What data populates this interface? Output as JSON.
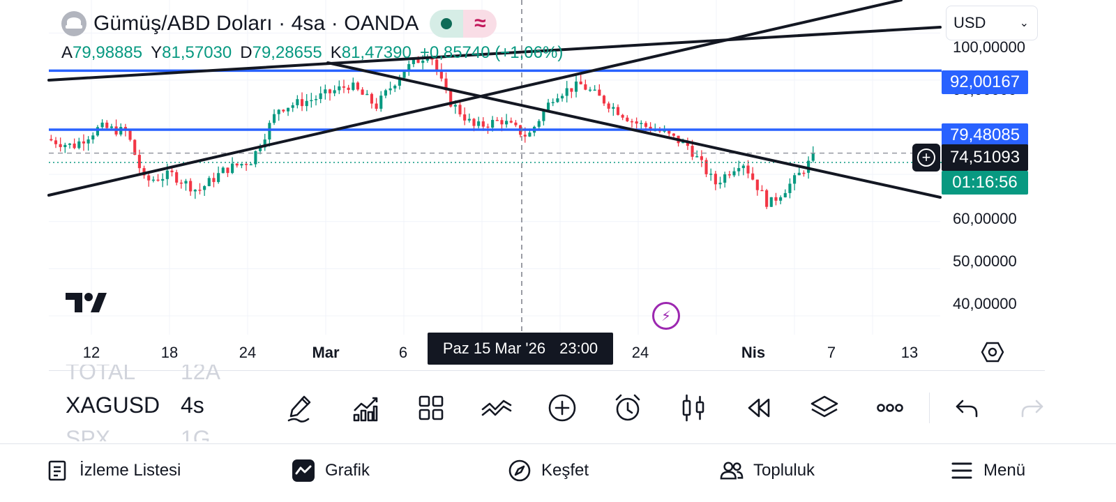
{
  "header": {
    "symbol_title": "Gümüş/ABD Doları · 4sa · OANDA",
    "market_status": "market-open-dot",
    "delay_icon": "≈"
  },
  "ohlc": {
    "open_label": "A",
    "open": "79,98885",
    "high_label": "Y",
    "high": "81,57030",
    "low_label": "D",
    "low": "79,28655",
    "close_label": "K",
    "close": "81,47390",
    "change": "+0,85740 (+1,06%)"
  },
  "currency": "USD",
  "price_axis": {
    "labels": [
      {
        "text": "100,00000",
        "value": 100
      },
      {
        "text": "90,00000",
        "value": 90
      },
      {
        "text": "60,00000",
        "value": 60
      },
      {
        "text": "50,00000",
        "value": 50
      },
      {
        "text": "40,00000",
        "value": 40
      }
    ],
    "tags": {
      "line1": "92,00167",
      "line2": "79,48085",
      "crosshair": "74,51093",
      "countdown": "01:16:56"
    }
  },
  "time_axis": {
    "labels": [
      {
        "text": "12",
        "bold": false
      },
      {
        "text": "18",
        "bold": false
      },
      {
        "text": "24",
        "bold": false
      },
      {
        "text": "Mar",
        "bold": true
      },
      {
        "text": "6",
        "bold": false
      },
      {
        "text": "24",
        "bold": false
      },
      {
        "text": "Nis",
        "bold": true
      },
      {
        "text": "7",
        "bold": false
      },
      {
        "text": "13",
        "bold": false
      }
    ],
    "crosshair_date": "Paz 15 Mar '26",
    "crosshair_time": "23:00"
  },
  "watchlist_strip": [
    {
      "symbol": "TOTAL",
      "interval": "12A",
      "state": "faded"
    },
    {
      "symbol": "XAGUSD",
      "interval": "4s",
      "state": "active"
    },
    {
      "symbol": "SPX",
      "interval": "1G",
      "state": "faded"
    }
  ],
  "toolbar": [
    {
      "name": "drawing-tool-button",
      "icon": "pen-icon"
    },
    {
      "name": "indicators-button",
      "icon": "chart-bars-icon"
    },
    {
      "name": "layouts-button",
      "icon": "grid-icon"
    },
    {
      "name": "compare-button",
      "icon": "waves-icon"
    },
    {
      "name": "add-button",
      "icon": "plus-circle-icon"
    },
    {
      "name": "alert-button",
      "icon": "alarm-clock-icon"
    },
    {
      "name": "chart-type-button",
      "icon": "candles-icon"
    },
    {
      "name": "replay-button",
      "icon": "rewind-icon"
    },
    {
      "name": "objects-tree-button",
      "icon": "layers-icon"
    },
    {
      "name": "more-button",
      "icon": "ellipsis-icon"
    },
    {
      "name": "undo-button",
      "icon": "undo-icon"
    },
    {
      "name": "redo-button",
      "icon": "redo-icon"
    }
  ],
  "bottom_nav": [
    {
      "label": "İzleme Listesi",
      "icon": "watchlist-icon"
    },
    {
      "label": "Grafik",
      "icon": "chart-icon"
    },
    {
      "label": "Keşfet",
      "icon": "compass-icon"
    },
    {
      "label": "Topluluk",
      "icon": "community-icon"
    },
    {
      "label": "Menü",
      "icon": "menu-icon"
    }
  ],
  "colors": {
    "up": "#089981",
    "down": "#f23645",
    "horizontal_line": "#2962ff",
    "trendline": "#131722",
    "purple": "#9c27b0"
  },
  "chart_data": {
    "type": "candlestick",
    "symbol": "XAGUSD",
    "interval": "4s",
    "ylim": [
      36,
      107
    ],
    "horizontal_levels": [
      92.00167,
      79.48085
    ],
    "crosshair_price": 74.51093,
    "series_hint": [
      {
        "x": 0.0,
        "y": 77.5
      },
      {
        "x": 0.03,
        "y": 76.0
      },
      {
        "x": 0.06,
        "y": 80.0
      },
      {
        "x": 0.09,
        "y": 79.0
      },
      {
        "x": 0.11,
        "y": 68.5
      },
      {
        "x": 0.14,
        "y": 70.0
      },
      {
        "x": 0.17,
        "y": 66.5
      },
      {
        "x": 0.2,
        "y": 71.0
      },
      {
        "x": 0.23,
        "y": 73.0
      },
      {
        "x": 0.26,
        "y": 84.0
      },
      {
        "x": 0.3,
        "y": 86.0
      },
      {
        "x": 0.34,
        "y": 89.0
      },
      {
        "x": 0.37,
        "y": 84.5
      },
      {
        "x": 0.4,
        "y": 92.0
      },
      {
        "x": 0.43,
        "y": 96.0
      },
      {
        "x": 0.45,
        "y": 86.0
      },
      {
        "x": 0.48,
        "y": 80.0
      },
      {
        "x": 0.51,
        "y": 81.5
      },
      {
        "x": 0.54,
        "y": 78.0
      },
      {
        "x": 0.57,
        "y": 87.0
      },
      {
        "x": 0.6,
        "y": 89.0
      },
      {
        "x": 0.63,
        "y": 85.0
      },
      {
        "x": 0.66,
        "y": 81.0
      },
      {
        "x": 0.69,
        "y": 79.0
      },
      {
        "x": 0.72,
        "y": 76.0
      },
      {
        "x": 0.75,
        "y": 68.0
      },
      {
        "x": 0.78,
        "y": 73.0
      },
      {
        "x": 0.81,
        "y": 63.5
      },
      {
        "x": 0.84,
        "y": 69.0
      },
      {
        "x": 0.86,
        "y": 73.5
      }
    ]
  }
}
